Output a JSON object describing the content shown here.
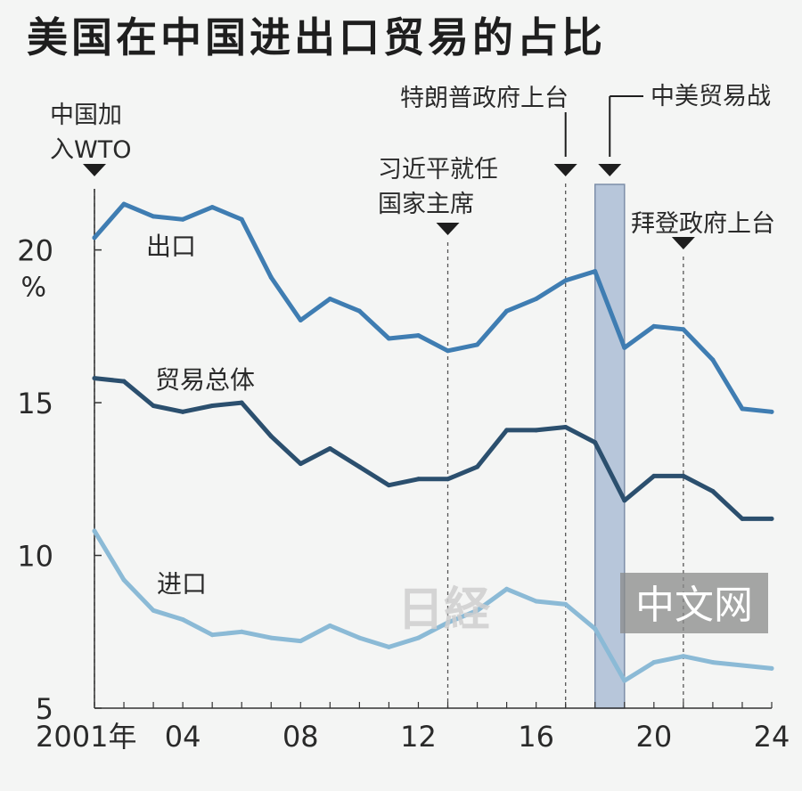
{
  "chart_data": {
    "type": "line",
    "title": "美国在中国进出口贸易的占比",
    "ylabel": "%",
    "ylim": [
      5,
      22
    ],
    "yticks": [
      5,
      10,
      15,
      20
    ],
    "xlim": [
      2001,
      2024
    ],
    "xticks": [
      {
        "value": 2001,
        "label": "2001年"
      },
      {
        "value": 2004,
        "label": "04"
      },
      {
        "value": 2008,
        "label": "08"
      },
      {
        "value": 2012,
        "label": "12"
      },
      {
        "value": 2016,
        "label": "16"
      },
      {
        "value": 2020,
        "label": "20"
      },
      {
        "value": 2024,
        "label": "24"
      }
    ],
    "x": [
      2001,
      2002,
      2003,
      2004,
      2005,
      2006,
      2007,
      2008,
      2009,
      2010,
      2011,
      2012,
      2013,
      2014,
      2015,
      2016,
      2017,
      2018,
      2019,
      2020,
      2021,
      2022,
      2023,
      2024
    ],
    "series": [
      {
        "name": "出口",
        "color": "#3f7db2",
        "values": [
          20.4,
          21.5,
          21.1,
          21.0,
          21.4,
          21.0,
          19.1,
          17.7,
          18.4,
          18.0,
          17.1,
          17.2,
          16.7,
          16.9,
          18.0,
          18.4,
          19.0,
          19.3,
          16.8,
          17.5,
          17.4,
          16.4,
          14.8,
          14.7
        ]
      },
      {
        "name": "贸易总体",
        "color": "#2b4f6e",
        "values": [
          15.8,
          15.7,
          14.9,
          14.7,
          14.9,
          15.0,
          13.9,
          13.0,
          13.5,
          12.9,
          12.3,
          12.5,
          12.5,
          12.9,
          14.1,
          14.1,
          14.2,
          13.7,
          11.8,
          12.6,
          12.6,
          12.1,
          11.2,
          11.2
        ]
      },
      {
        "name": "进口",
        "color": "#8bbad6",
        "values": [
          10.8,
          9.2,
          8.2,
          7.9,
          7.4,
          7.5,
          7.3,
          7.2,
          7.7,
          7.3,
          7.0,
          7.3,
          7.8,
          8.2,
          8.9,
          8.5,
          8.4,
          7.6,
          5.9,
          6.5,
          6.7,
          6.5,
          6.4,
          6.3
        ]
      }
    ],
    "events": [
      {
        "x": 2001,
        "label_lines": [
          "中国加",
          "入WTO"
        ]
      },
      {
        "x": 2013,
        "label_lines": [
          "习近平就任",
          "国家主席"
        ]
      },
      {
        "x": 2017,
        "label_lines": [
          "特朗普政府上台"
        ]
      },
      {
        "x": 2021,
        "label_lines": [
          "拜登政府上台"
        ]
      }
    ],
    "shaded_period": {
      "from": 2018,
      "to": 2019,
      "label": "中美贸易战",
      "color": "#b7c6da"
    },
    "grid": false,
    "legend": "inline"
  },
  "watermark": {
    "logo_text": "日経",
    "box_text": "中文网"
  }
}
